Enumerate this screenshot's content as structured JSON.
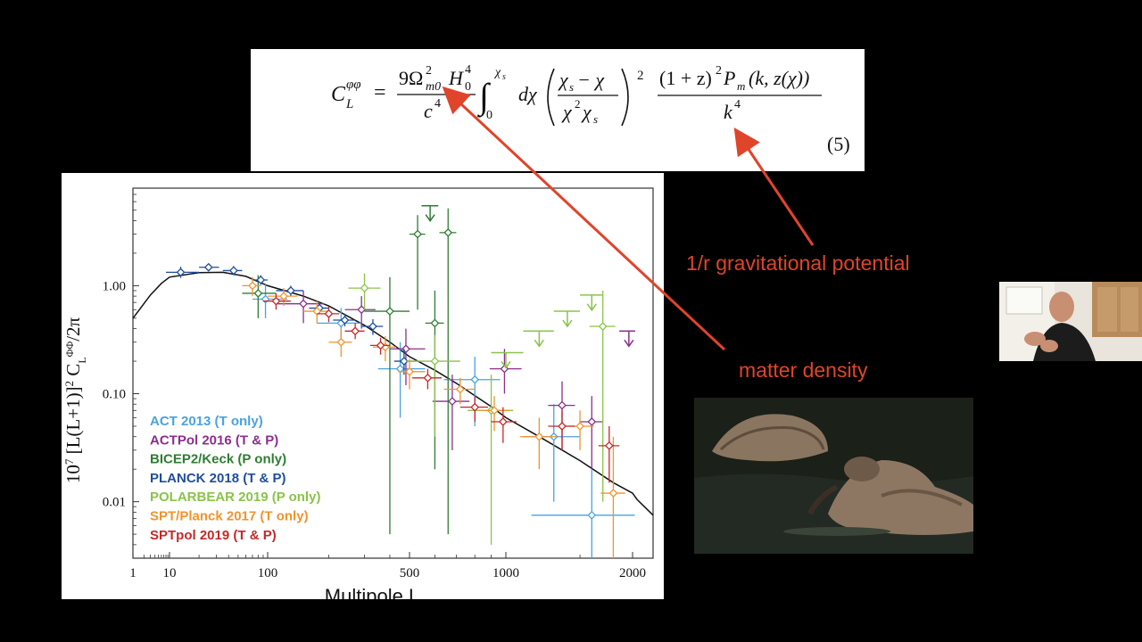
{
  "equation": {
    "lhs": "C",
    "lhs_sup": "φφ",
    "lhs_sub": "L",
    "equals": "=",
    "coef_num": "9Ω",
    "omega_sup": "2",
    "omega_sub": "m0",
    "hubble": "H",
    "hubble_sup": "4",
    "hubble_sub": "0",
    "coef_den": "c",
    "coef_den_sup": "4",
    "integral": "∫",
    "int_upper": "χ",
    "int_upper_sub": "s",
    "int_lower": "0",
    "dchi": "dχ",
    "paren_num": "χ",
    "paren_num_sub": "s",
    "paren_num_rest": " − χ",
    "paren_den": "χ",
    "paren_den_sup": "2",
    "paren_den_rest": "χ",
    "paren_den_sub": "s",
    "paren_sup": "2",
    "frac2_num": "(1 + z)",
    "frac2_num_sup": "2",
    "frac2_num_rest": "P",
    "frac2_num_sub": "m",
    "frac2_num_args": "(k, z(χ))",
    "frac2_den": "k",
    "frac2_den_sup": "4",
    "number": "(5)"
  },
  "annotations": {
    "gravitational": "1/r gravitational potential",
    "matter": "matter density",
    "color": "#e0442b"
  },
  "chart_data": {
    "type": "scatter",
    "xlabel": "Multipole L",
    "ylabel_main": "10",
    "ylabel_exp": "7",
    "ylabel_body": " [L(L+1)]",
    "ylabel_sq": "2",
    "ylabel_c": " C",
    "ylabel_sub": "L",
    "ylabel_sup": "ΦΦ",
    "ylabel_tail": "/2π",
    "xlim": [
      1,
      2500
    ],
    "ylim": [
      0.003,
      8
    ],
    "x_scale": "log-like multipole",
    "y_scale": "log",
    "x_ticks": [
      {
        "value": 1,
        "label": "1"
      },
      {
        "value": 10,
        "label": "10"
      },
      {
        "value": 100,
        "label": "100"
      },
      {
        "value": 500,
        "label": "500"
      },
      {
        "value": 1000,
        "label": "1000"
      },
      {
        "value": 2000,
        "label": "2000"
      }
    ],
    "y_ticks": [
      {
        "value": 1.0,
        "label": "1.00"
      },
      {
        "value": 0.1,
        "label": "0.10"
      },
      {
        "value": 0.01,
        "label": "0.01"
      }
    ],
    "legend_position": "bottom-left",
    "theory_curve": {
      "x": [
        1,
        3,
        6,
        10,
        20,
        35,
        60,
        100,
        150,
        200,
        300,
        400,
        500,
        600,
        700,
        800,
        900,
        1000,
        1200,
        1500,
        1800,
        2000,
        2100,
        2500
      ],
      "y": [
        0.5,
        0.82,
        1.05,
        1.2,
        1.32,
        1.33,
        1.22,
        1.0,
        0.8,
        0.65,
        0.43,
        0.3,
        0.22,
        0.165,
        0.125,
        0.096,
        0.076,
        0.06,
        0.04,
        0.024,
        0.015,
        0.012,
        0.0105,
        0.0075
      ]
    },
    "series": [
      {
        "name": "ACT 2013 (T only)",
        "color": "#4aa3df",
        "points": [
          {
            "x": 95,
            "y": 0.75,
            "xlo": 70,
            "xhi": 125,
            "ylo": 0.5,
            "yhi": 1.05
          },
          {
            "x": 230,
            "y": 0.45,
            "xlo": 175,
            "xhi": 290,
            "ylo": 0.3,
            "yhi": 0.62
          },
          {
            "x": 450,
            "y": 0.17,
            "xlo": 350,
            "xhi": 560,
            "ylo": 0.06,
            "yhi": 0.3
          },
          {
            "x": 800,
            "y": 0.135,
            "xlo": 640,
            "xhi": 960,
            "ylo": 0.05,
            "yhi": 0.22
          },
          {
            "x": 1300,
            "y": 0.04,
            "xlo": 1100,
            "xhi": 1500,
            "ylo": 0.01,
            "yhi": 0.08
          },
          {
            "x": 1600,
            "y": 0.0075,
            "xlo": 1150,
            "xhi": 2050,
            "ylo": 0.003,
            "yhi": 0.02
          }
        ]
      },
      {
        "name": "ACTPol 2016 (T & P)",
        "color": "#8b2f8b",
        "points": [
          {
            "x": 150,
            "y": 0.68,
            "xlo": 110,
            "xhi": 190,
            "ylo": 0.45,
            "yhi": 0.9
          },
          {
            "x": 290,
            "y": 0.6,
            "xlo": 240,
            "xhi": 340,
            "ylo": 0.4,
            "yhi": 0.8
          },
          {
            "x": 480,
            "y": 0.26,
            "xlo": 400,
            "xhi": 560,
            "ylo": 0.12,
            "yhi": 0.4
          },
          {
            "x": 680,
            "y": 0.085,
            "xlo": 590,
            "xhi": 770,
            "ylo": 0.03,
            "yhi": 0.15
          },
          {
            "x": 990,
            "y": 0.17,
            "xlo": 890,
            "xhi": 1090,
            "ylo": 0.1,
            "yhi": 0.26
          },
          {
            "x": 1360,
            "y": 0.078,
            "xlo": 1260,
            "xhi": 1460,
            "ylo": 0.03,
            "yhi": 0.13
          },
          {
            "x": 1600,
            "y": 0.055,
            "xlo": 1500,
            "xhi": 1700,
            "ylo": 0.02,
            "yhi": 0.095
          }
        ]
      },
      {
        "name": "BICEP2/Keck (P only)",
        "color": "#2e7d32",
        "points": [
          {
            "x": 80,
            "y": 0.85,
            "xlo": 55,
            "xhi": 110,
            "ylo": 0.5,
            "yhi": 1.25
          },
          {
            "x": 400,
            "y": 0.58,
            "xlo": 300,
            "xhi": 500,
            "ylo": 0.005,
            "yhi": 1.2
          },
          {
            "x": 530,
            "y": 3.0,
            "xlo": 500,
            "xhi": 560,
            "ylo": 0.6,
            "yhi": 4.5
          },
          {
            "x": 660,
            "y": 3.1,
            "xlo": 620,
            "xhi": 700,
            "ylo": 0.005,
            "yhi": 5.2
          },
          {
            "x": 600,
            "y": 0.45,
            "xlo": 560,
            "xhi": 640,
            "ylo": 0.02,
            "yhi": 0.9
          }
        ]
      },
      {
        "name": "PLANCK 2018 (T & P)",
        "color": "#1f4e9c",
        "points": [
          {
            "x": 13,
            "y": 1.33,
            "xlo": 8,
            "xhi": 20,
            "ylo": 1.18,
            "yhi": 1.5
          },
          {
            "x": 25,
            "y": 1.48,
            "xlo": 20,
            "xhi": 32,
            "ylo": 1.38,
            "yhi": 1.58
          },
          {
            "x": 45,
            "y": 1.38,
            "xlo": 35,
            "xhi": 55,
            "ylo": 1.25,
            "yhi": 1.52
          },
          {
            "x": 85,
            "y": 1.13,
            "xlo": 70,
            "xhi": 100,
            "ylo": 1.02,
            "yhi": 1.25
          },
          {
            "x": 130,
            "y": 0.9,
            "xlo": 110,
            "xhi": 150,
            "ylo": 0.8,
            "yhi": 1.0
          },
          {
            "x": 180,
            "y": 0.62,
            "xlo": 160,
            "xhi": 200,
            "ylo": 0.55,
            "yhi": 0.7
          },
          {
            "x": 240,
            "y": 0.48,
            "xlo": 210,
            "xhi": 270,
            "ylo": 0.42,
            "yhi": 0.55
          },
          {
            "x": 330,
            "y": 0.42,
            "xlo": 290,
            "xhi": 370,
            "ylo": 0.35,
            "yhi": 0.49
          },
          {
            "x": 470,
            "y": 0.2,
            "xlo": 420,
            "xhi": 520,
            "ylo": 0.15,
            "yhi": 0.26
          }
        ]
      },
      {
        "name": "POLARBEAR 2019 (P only)",
        "color": "#8bc34a",
        "points": [
          {
            "x": 300,
            "y": 0.95,
            "xlo": 250,
            "xhi": 360,
            "ylo": 0.6,
            "yhi": 1.3
          },
          {
            "x": 600,
            "y": 0.2,
            "xlo": 480,
            "xhi": 720,
            "ylo": 0.04,
            "yhi": 0.35
          },
          {
            "x": 900,
            "y": 0.07,
            "xlo": 760,
            "xhi": 1040,
            "ylo": 0.004,
            "yhi": 0.15
          },
          {
            "x": 1700,
            "y": 0.42,
            "xlo": 1580,
            "xhi": 1820,
            "ylo": 0.01,
            "yhi": 0.9
          }
        ]
      },
      {
        "name": "SPT/Planck  2017 (T only)",
        "color": "#f0942e",
        "points": [
          {
            "x": 70,
            "y": 1.0,
            "xlo": 55,
            "xhi": 85,
            "ylo": 0.8,
            "yhi": 1.2
          },
          {
            "x": 120,
            "y": 0.8,
            "xlo": 100,
            "xhi": 140,
            "ylo": 0.65,
            "yhi": 0.95
          },
          {
            "x": 175,
            "y": 0.58,
            "xlo": 150,
            "xhi": 200,
            "ylo": 0.45,
            "yhi": 0.72
          },
          {
            "x": 230,
            "y": 0.3,
            "xlo": 200,
            "xhi": 260,
            "ylo": 0.22,
            "yhi": 0.4
          },
          {
            "x": 380,
            "y": 0.27,
            "xlo": 330,
            "xhi": 430,
            "ylo": 0.2,
            "yhi": 0.34
          },
          {
            "x": 500,
            "y": 0.16,
            "xlo": 440,
            "xhi": 560,
            "ylo": 0.11,
            "yhi": 0.21
          },
          {
            "x": 720,
            "y": 0.11,
            "xlo": 640,
            "xhi": 800,
            "ylo": 0.08,
            "yhi": 0.14
          },
          {
            "x": 920,
            "y": 0.07,
            "xlo": 820,
            "xhi": 1020,
            "ylo": 0.045,
            "yhi": 0.095
          },
          {
            "x": 1200,
            "y": 0.04,
            "xlo": 1080,
            "xhi": 1320,
            "ylo": 0.02,
            "yhi": 0.06
          },
          {
            "x": 1500,
            "y": 0.05,
            "xlo": 1380,
            "xhi": 1620,
            "ylo": 0.03,
            "yhi": 0.07
          },
          {
            "x": 1800,
            "y": 0.012,
            "xlo": 1680,
            "xhi": 1920,
            "ylo": 0.003,
            "yhi": 0.04
          }
        ]
      },
      {
        "name": "SPTpol 2019 (T & P)",
        "color": "#c62828",
        "points": [
          {
            "x": 110,
            "y": 0.72,
            "xlo": 90,
            "xhi": 130,
            "ylo": 0.6,
            "yhi": 0.85
          },
          {
            "x": 200,
            "y": 0.55,
            "xlo": 175,
            "xhi": 225,
            "ylo": 0.46,
            "yhi": 0.64
          },
          {
            "x": 270,
            "y": 0.38,
            "xlo": 240,
            "xhi": 300,
            "ylo": 0.32,
            "yhi": 0.45
          },
          {
            "x": 360,
            "y": 0.28,
            "xlo": 320,
            "xhi": 400,
            "ylo": 0.23,
            "yhi": 0.33
          },
          {
            "x": 570,
            "y": 0.14,
            "xlo": 510,
            "xhi": 630,
            "ylo": 0.11,
            "yhi": 0.17
          },
          {
            "x": 800,
            "y": 0.075,
            "xlo": 720,
            "xhi": 880,
            "ylo": 0.055,
            "yhi": 0.095
          },
          {
            "x": 980,
            "y": 0.055,
            "xlo": 900,
            "xhi": 1060,
            "ylo": 0.035,
            "yhi": 0.075
          },
          {
            "x": 1360,
            "y": 0.05,
            "xlo": 1260,
            "xhi": 1460,
            "ylo": 0.03,
            "yhi": 0.07
          },
          {
            "x": 1760,
            "y": 0.033,
            "xlo": 1660,
            "xhi": 1860,
            "ylo": 0.015,
            "yhi": 0.05
          }
        ]
      }
    ],
    "upper_limits": [
      {
        "series": "BICEP2/Keck (P only)",
        "color": "#2e7d32",
        "x": 580,
        "xlo": 545,
        "xhi": 615,
        "y": 5.5
      },
      {
        "series": "POLARBEAR 2019 (P only)",
        "color": "#8bc34a",
        "x": 1000,
        "xlo": 900,
        "xhi": 1100,
        "y": 0.24
      },
      {
        "series": "POLARBEAR 2019 (P only)",
        "color": "#8bc34a",
        "x": 1200,
        "xlo": 1100,
        "xhi": 1300,
        "y": 0.38
      },
      {
        "series": "POLARBEAR 2019 (P only)",
        "color": "#8bc34a",
        "x": 1400,
        "xlo": 1300,
        "xhi": 1500,
        "y": 0.58
      },
      {
        "series": "POLARBEAR 2019 (P only)",
        "color": "#8bc34a",
        "x": 1600,
        "xlo": 1500,
        "xhi": 1700,
        "y": 0.82
      },
      {
        "series": "ACTPol 2016 (T & P)",
        "color": "#8b2f8b",
        "x": 1960,
        "xlo": 1860,
        "xhi": 2060,
        "y": 0.38
      }
    ]
  }
}
